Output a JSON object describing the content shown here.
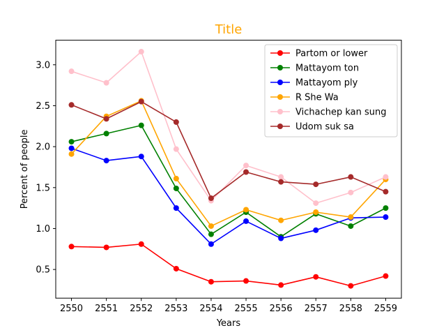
{
  "chart_data": {
    "type": "line",
    "title": "Title",
    "title_color": "#FFA500",
    "xlabel": "Years",
    "ylabel": "Percent of people",
    "x": [
      2550,
      2551,
      2552,
      2553,
      2554,
      2555,
      2556,
      2557,
      2558,
      2559
    ],
    "xticks": [
      "2550",
      "2551",
      "2552",
      "2553",
      "2554",
      "2555",
      "2556",
      "2557",
      "2558",
      "2559"
    ],
    "yticks": [
      "0.5",
      "1.0",
      "1.5",
      "2.0",
      "2.5",
      "3.0"
    ],
    "ylim": [
      0.15,
      3.3
    ],
    "legend_position": "top-right",
    "grid": false,
    "series": [
      {
        "name": "Partom or lower",
        "color": "#FF0000",
        "values": [
          0.78,
          0.77,
          0.81,
          0.51,
          0.35,
          0.36,
          0.31,
          0.41,
          0.3,
          0.42
        ]
      },
      {
        "name": "Mattayom ton",
        "color": "#008000",
        "values": [
          2.06,
          2.16,
          2.26,
          1.49,
          0.93,
          1.2,
          0.9,
          1.18,
          1.03,
          1.25
        ]
      },
      {
        "name": "Mattayom ply",
        "color": "#0000FF",
        "values": [
          1.98,
          1.83,
          1.88,
          1.25,
          0.81,
          1.09,
          0.88,
          0.98,
          1.13,
          1.14
        ]
      },
      {
        "name": "R She Wa",
        "color": "#FFA500",
        "values": [
          1.91,
          2.37,
          2.56,
          1.61,
          1.03,
          1.23,
          1.1,
          1.2,
          1.14,
          1.6
        ]
      },
      {
        "name": "Vichachep kan sung",
        "color": "#FFC0CB",
        "values": [
          2.92,
          2.78,
          3.16,
          1.97,
          1.34,
          1.77,
          1.63,
          1.31,
          1.44,
          1.63
        ]
      },
      {
        "name": "Udom suk sa",
        "color": "#A52A2A",
        "values": [
          2.51,
          2.34,
          2.55,
          2.3,
          1.37,
          1.69,
          1.57,
          1.54,
          1.63,
          1.45
        ]
      }
    ]
  }
}
